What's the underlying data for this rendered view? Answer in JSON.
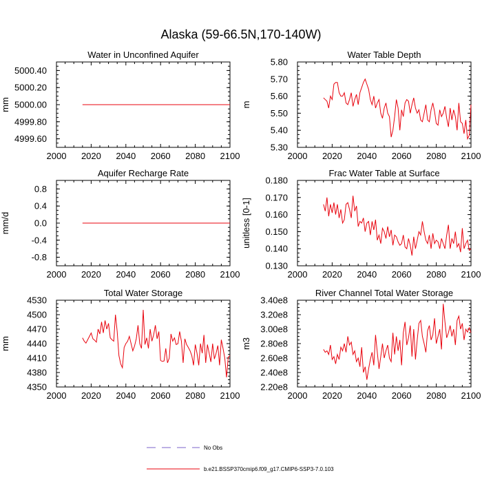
{
  "figure": {
    "title": "Alaska (59-66.5N,170-140W)",
    "legend": [
      {
        "label": "No Obs",
        "color": "#7b61c9",
        "style": "dashed"
      },
      {
        "label": "b.e21.BSSP370cmip6.f09_g17.CMIP6-SSP3-7.0.103",
        "color": "#e8000b",
        "style": "solid"
      }
    ]
  },
  "chart_data": [
    {
      "type": "line",
      "title": "Water in Unconfined Aquifer",
      "xlabel": "",
      "ylabel": "mm",
      "xlim": [
        2000,
        2100
      ],
      "ylim": [
        4999.5,
        5000.5
      ],
      "xticks": [
        2000,
        2020,
        2040,
        2060,
        2080,
        2100
      ],
      "xtick_labels": [
        "2000",
        "2020",
        "2040",
        "2060",
        "2080",
        "2100"
      ],
      "yticks": [
        4999.6,
        4999.8,
        5000.0,
        5000.2,
        5000.4
      ],
      "ytick_labels": [
        "4999.60",
        "4999.80",
        "5000.00",
        "5000.20",
        "5000.40"
      ],
      "series": [
        {
          "name": "b.e21.BSSP370cmip6.f09_g17.CMIP6-SSP3-7.0.103",
          "color": "#e8000b",
          "x_start": 2015,
          "x_end": 2100,
          "values": [
            5000,
            5000,
            5000,
            5000,
            5000,
            5000,
            5000,
            5000,
            5000,
            5000,
            5000,
            5000,
            5000,
            5000,
            5000,
            5000,
            5000,
            5000,
            5000,
            5000,
            5000,
            5000,
            5000,
            5000,
            5000,
            5000,
            5000,
            5000,
            5000,
            5000,
            5000,
            5000,
            5000,
            5000,
            5000,
            5000,
            5000,
            5000,
            5000,
            5000,
            5000,
            5000,
            5000,
            5000,
            5000,
            5000,
            5000,
            5000,
            5000,
            5000,
            5000,
            5000,
            5000,
            5000,
            5000,
            5000,
            5000,
            5000,
            5000,
            5000,
            5000,
            5000,
            5000,
            5000,
            5000,
            5000,
            5000,
            5000,
            5000,
            5000,
            5000,
            5000,
            5000,
            5000,
            5000,
            5000,
            5000,
            5000,
            5000,
            5000,
            5000,
            5000,
            5000,
            5000,
            5000,
            5000
          ]
        }
      ]
    },
    {
      "type": "line",
      "title": "Water Table Depth",
      "xlabel": "",
      "ylabel": "m",
      "xlim": [
        2000,
        2100
      ],
      "ylim": [
        5.3,
        5.8
      ],
      "xticks": [
        2000,
        2020,
        2040,
        2060,
        2080,
        2100
      ],
      "xtick_labels": [
        "2000",
        "2020",
        "2040",
        "2060",
        "2080",
        "2100"
      ],
      "yticks": [
        5.3,
        5.4,
        5.5,
        5.6,
        5.7,
        5.8
      ],
      "ytick_labels": [
        "5.30",
        "5.40",
        "5.50",
        "5.60",
        "5.70",
        "5.80"
      ],
      "series": [
        {
          "name": "b.e21.BSSP370cmip6.f09_g17.CMIP6-SSP3-7.0.103",
          "color": "#e8000b",
          "x_start": 2015,
          "x_end": 2100,
          "values": [
            5.59,
            5.58,
            5.57,
            5.53,
            5.6,
            5.58,
            5.67,
            5.68,
            5.68,
            5.62,
            5.6,
            5.6,
            5.62,
            5.56,
            5.55,
            5.58,
            5.62,
            5.54,
            5.58,
            5.61,
            5.55,
            5.62,
            5.65,
            5.68,
            5.7,
            5.67,
            5.64,
            5.58,
            5.55,
            5.6,
            5.53,
            5.56,
            5.58,
            5.5,
            5.47,
            5.53,
            5.56,
            5.5,
            5.48,
            5.36,
            5.4,
            5.48,
            5.58,
            5.53,
            5.4,
            5.52,
            5.48,
            5.56,
            5.58,
            5.57,
            5.5,
            5.55,
            5.59,
            5.53,
            5.5,
            5.52,
            5.46,
            5.45,
            5.5,
            5.55,
            5.46,
            5.45,
            5.52,
            5.56,
            5.51,
            5.44,
            5.43,
            5.52,
            5.48,
            5.5,
            5.54,
            5.47,
            5.42,
            5.53,
            5.46,
            5.52,
            5.48,
            5.4,
            5.56,
            5.45,
            5.44,
            5.38,
            5.46,
            5.35,
            5.37,
            5.55
          ]
        }
      ]
    },
    {
      "type": "line",
      "title": "Aquifer Recharge Rate",
      "xlabel": "",
      "ylabel": "mm/d",
      "xlim": [
        2000,
        2100
      ],
      "ylim": [
        -1.0,
        1.0
      ],
      "xticks": [
        2000,
        2020,
        2040,
        2060,
        2080,
        2100
      ],
      "xtick_labels": [
        "2000",
        "2020",
        "2040",
        "2060",
        "2080",
        "2100"
      ],
      "yticks": [
        -0.8,
        -0.4,
        0.0,
        0.4,
        0.8
      ],
      "ytick_labels": [
        "-0.8",
        "-0.4",
        "0.0",
        "0.4",
        "0.8"
      ],
      "series": [
        {
          "name": "b.e21.BSSP370cmip6.f09_g17.CMIP6-SSP3-7.0.103",
          "color": "#e8000b",
          "x_start": 2015,
          "x_end": 2100,
          "values": [
            0,
            0,
            0,
            0,
            0,
            0,
            0,
            0,
            0,
            0,
            0,
            0,
            0,
            0,
            0,
            0,
            0,
            0,
            0,
            0,
            0,
            0,
            0,
            0,
            0,
            0,
            0,
            0,
            0,
            0,
            0,
            0,
            0,
            0,
            0,
            0,
            0,
            0,
            0,
            0,
            0,
            0,
            0,
            0,
            0,
            0,
            0,
            0,
            0,
            0,
            0,
            0,
            0,
            0,
            0,
            0,
            0,
            0,
            0,
            0,
            0,
            0,
            0,
            0,
            0,
            0,
            0,
            0,
            0,
            0,
            0,
            0,
            0,
            0,
            0,
            0,
            0,
            0,
            0,
            0,
            0,
            0,
            0,
            0,
            0,
            0
          ]
        }
      ]
    },
    {
      "type": "line",
      "title": "Frac Water Table at Surface",
      "xlabel": "",
      "ylabel": "unitless [0-1]",
      "xlim": [
        2000,
        2100
      ],
      "ylim": [
        0.13,
        0.18
      ],
      "xticks": [
        2000,
        2020,
        2040,
        2060,
        2080,
        2100
      ],
      "xtick_labels": [
        "2000",
        "2020",
        "2040",
        "2060",
        "2080",
        "2100"
      ],
      "yticks": [
        0.13,
        0.14,
        0.15,
        0.16,
        0.17,
        0.18
      ],
      "ytick_labels": [
        "0.130",
        "0.140",
        "0.150",
        "0.160",
        "0.170",
        "0.180"
      ],
      "series": [
        {
          "name": "b.e21.BSSP370cmip6.f09_g17.CMIP6-SSP3-7.0.103",
          "color": "#e8000b",
          "x_start": 2015,
          "x_end": 2100,
          "values": [
            0.166,
            0.162,
            0.17,
            0.159,
            0.166,
            0.161,
            0.167,
            0.16,
            0.166,
            0.158,
            0.163,
            0.155,
            0.157,
            0.166,
            0.167,
            0.163,
            0.158,
            0.171,
            0.162,
            0.165,
            0.153,
            0.156,
            0.155,
            0.158,
            0.15,
            0.155,
            0.156,
            0.148,
            0.156,
            0.151,
            0.157,
            0.145,
            0.148,
            0.143,
            0.152,
            0.15,
            0.146,
            0.153,
            0.147,
            0.151,
            0.142,
            0.148,
            0.147,
            0.144,
            0.142,
            0.143,
            0.148,
            0.141,
            0.14,
            0.146,
            0.142,
            0.136,
            0.147,
            0.14,
            0.145,
            0.15,
            0.148,
            0.156,
            0.15,
            0.145,
            0.143,
            0.148,
            0.14,
            0.149,
            0.143,
            0.145,
            0.144,
            0.14,
            0.146,
            0.143,
            0.14,
            0.148,
            0.154,
            0.14,
            0.146,
            0.143,
            0.15,
            0.141,
            0.143,
            0.138,
            0.152,
            0.14,
            0.143,
            0.145,
            0.139,
            0.14
          ]
        }
      ]
    },
    {
      "type": "line",
      "title": "Total Water Storage",
      "xlabel": "",
      "ylabel": "mm",
      "xlim": [
        2000,
        2100
      ],
      "ylim": [
        4350,
        4530
      ],
      "xticks": [
        2000,
        2020,
        2040,
        2060,
        2080,
        2100
      ],
      "xtick_labels": [
        "2000",
        "2020",
        "2040",
        "2060",
        "2080",
        "2100"
      ],
      "yticks": [
        4350,
        4380,
        4410,
        4440,
        4470,
        4500,
        4530
      ],
      "ytick_labels": [
        "4350",
        "4380",
        "4410",
        "4440",
        "4470",
        "4500",
        "4530"
      ],
      "series": [
        {
          "name": "b.e21.BSSP370cmip6.f09_g17.CMIP6-SSP3-7.0.103",
          "color": "#e8000b",
          "x_start": 2015,
          "x_end": 2100,
          "values": [
            4452,
            4445,
            4441,
            4448,
            4455,
            4462,
            4450,
            4447,
            4443,
            4470,
            4460,
            4485,
            4462,
            4488,
            4470,
            4482,
            4452,
            4448,
            4445,
            4500,
            4465,
            4415,
            4398,
            4390,
            4432,
            4440,
            4445,
            4455,
            4440,
            4425,
            4435,
            4450,
            4478,
            4440,
            4430,
            4510,
            4438,
            4452,
            4430,
            4470,
            4445,
            4458,
            4478,
            4450,
            4465,
            4405,
            4403,
            4404,
            4430,
            4400,
            4410,
            4460,
            4445,
            4452,
            4438,
            4440,
            4465,
            4445,
            4400,
            4450,
            4438,
            4432,
            4425,
            4415,
            4395,
            4438,
            4420,
            4395,
            4440,
            4420,
            4458,
            4400,
            4438,
            4420,
            4402,
            4440,
            4408,
            4420,
            4436,
            4395,
            4448,
            4430,
            4410,
            4370,
            4412,
            4415
          ]
        }
      ]
    },
    {
      "type": "line",
      "title": "River Channel Total Water Storage",
      "xlabel": "",
      "ylabel": "m3",
      "xlim": [
        2000,
        2100
      ],
      "ylim": [
        220000000,
        340000000
      ],
      "xticks": [
        2000,
        2020,
        2040,
        2060,
        2080,
        2100
      ],
      "xtick_labels": [
        "2000",
        "2020",
        "2040",
        "2060",
        "2080",
        "2100"
      ],
      "yticks": [
        220000000,
        240000000,
        260000000,
        280000000,
        300000000,
        320000000,
        340000000
      ],
      "ytick_labels": [
        "2.20e8",
        "2.40e8",
        "2.60e8",
        "2.80e8",
        "3.00e8",
        "3.20e8",
        "3.40e8"
      ],
      "series": [
        {
          "name": "b.e21.BSSP370cmip6.f09_g17.CMIP6-SSP3-7.0.103",
          "color": "#e8000b",
          "x_start": 2015,
          "x_end": 2100,
          "values": [
            272000000,
            268000000,
            270000000,
            265000000,
            278000000,
            258000000,
            262000000,
            252000000,
            265000000,
            258000000,
            275000000,
            270000000,
            280000000,
            268000000,
            290000000,
            278000000,
            282000000,
            265000000,
            270000000,
            255000000,
            260000000,
            248000000,
            275000000,
            240000000,
            248000000,
            230000000,
            245000000,
            258000000,
            268000000,
            250000000,
            292000000,
            268000000,
            245000000,
            262000000,
            280000000,
            260000000,
            270000000,
            278000000,
            260000000,
            255000000,
            295000000,
            265000000,
            290000000,
            270000000,
            285000000,
            250000000,
            295000000,
            310000000,
            278000000,
            288000000,
            305000000,
            262000000,
            300000000,
            258000000,
            285000000,
            308000000,
            312000000,
            290000000,
            280000000,
            268000000,
            298000000,
            305000000,
            285000000,
            292000000,
            315000000,
            280000000,
            290000000,
            300000000,
            272000000,
            335000000,
            310000000,
            288000000,
            295000000,
            305000000,
            290000000,
            300000000,
            278000000,
            312000000,
            318000000,
            300000000,
            308000000,
            285000000,
            300000000,
            296000000,
            302000000,
            295000000
          ]
        }
      ]
    }
  ]
}
